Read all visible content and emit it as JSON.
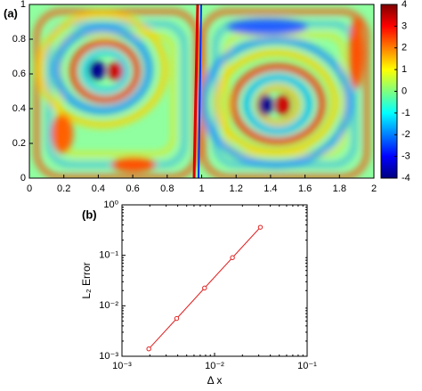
{
  "chart_data": [
    {
      "type": "heatmap",
      "panel_label": "(a)",
      "colormap": "jet",
      "xlim": [
        0,
        2
      ],
      "xticks": [
        0,
        0.2,
        0.4,
        0.6,
        0.8,
        1,
        1.2,
        1.4,
        1.6,
        1.8,
        2
      ],
      "ylim": [
        0,
        1
      ],
      "yticks": [
        0,
        0.2,
        0.4,
        0.6,
        0.8,
        1
      ],
      "clim": [
        -4,
        4
      ],
      "cticks": [
        -4,
        -3,
        -2,
        -1,
        0,
        1,
        2,
        3,
        4
      ]
    },
    {
      "type": "line",
      "panel_label": "(b)",
      "xlabel": "Δ x",
      "ylabel": "L₂ Error",
      "xscale": "log",
      "yscale": "log",
      "xlim": [
        0.001,
        0.1
      ],
      "xticks": [
        {
          "value": 0.001,
          "label": "10⁻³"
        },
        {
          "value": 0.01,
          "label": "10⁻²"
        },
        {
          "value": 0.1,
          "label": "10⁻¹"
        }
      ],
      "ylim": [
        0.001,
        1
      ],
      "yticks": [
        {
          "value": 0.001,
          "label": "10⁻³"
        },
        {
          "value": 0.01,
          "label": "10⁻²"
        },
        {
          "value": 0.1,
          "label": "10⁻¹"
        },
        {
          "value": 1,
          "label": "10⁰"
        }
      ],
      "x": [
        0.00195,
        0.0039,
        0.0078,
        0.0156,
        0.03125
      ],
      "series": [
        {
          "color": "#e02020",
          "values": [
            0.0014,
            0.0056,
            0.0225,
            0.09,
            0.36
          ]
        }
      ]
    }
  ]
}
